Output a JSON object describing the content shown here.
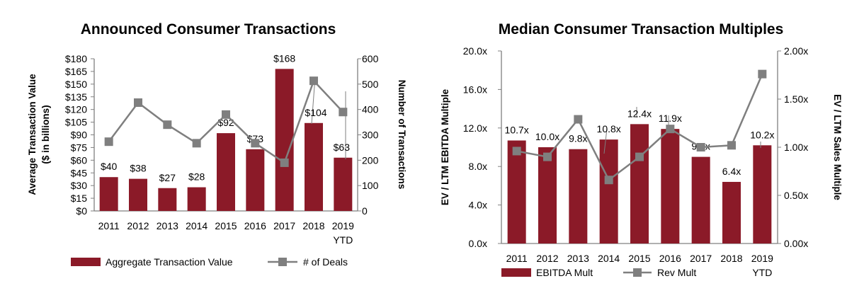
{
  "colors": {
    "bar": "#8b1a28",
    "line": "#7f7f7f",
    "axis": "#808080"
  },
  "chart_data": [
    {
      "type": "bar",
      "title": "Announced Consumer Transactions",
      "categories": [
        "2011",
        "2012",
        "2013",
        "2014",
        "2015",
        "2016",
        "2017",
        "2018",
        "2019"
      ],
      "category_sublabels": [
        "",
        "",
        "",
        "",
        "",
        "",
        "",
        "",
        "YTD"
      ],
      "series": [
        {
          "name": "Aggregate Transaction Value",
          "type": "bar",
          "axis": "left",
          "values": [
            40,
            38,
            27,
            28,
            92,
            73,
            168,
            104,
            63
          ],
          "labels": [
            "$40",
            "$38",
            "$27",
            "$28",
            "$92",
            "$73",
            "$168",
            "$104",
            "$63"
          ]
        },
        {
          "name": "# of Deals",
          "type": "line",
          "axis": "right",
          "values": [
            273,
            427,
            340,
            267,
            380,
            267,
            190,
            513,
            390
          ]
        }
      ],
      "ylabel_lines": [
        "Average Transaction Value",
        "($ in billions)"
      ],
      "y2label": "Number of Transactions",
      "ylim": [
        0,
        180
      ],
      "yticks": [
        "$0",
        "$15",
        "$30",
        "$45",
        "$60",
        "$75",
        "$90",
        "$105",
        "$120",
        "$135",
        "$150",
        "$165",
        "$180"
      ],
      "y2lim": [
        0,
        600
      ],
      "y2ticks": [
        "0",
        "100",
        "200",
        "300",
        "400",
        "500",
        "600"
      ],
      "legend_position": "bottom"
    },
    {
      "type": "bar",
      "title": "Median Consumer Transaction Multiples",
      "categories": [
        "2011",
        "2012",
        "2013",
        "2014",
        "2015",
        "2016",
        "2017",
        "2018",
        "2019"
      ],
      "category_sublabels": [
        "",
        "",
        "",
        "",
        "",
        "",
        "",
        "",
        "YTD"
      ],
      "series": [
        {
          "name": "EBITDA Mult",
          "type": "bar",
          "axis": "left",
          "values": [
            10.7,
            10.0,
            9.8,
            10.8,
            12.4,
            11.9,
            9.0,
            6.4,
            10.2
          ],
          "labels": [
            "10.7x",
            "10.0x",
            "9.8x",
            "10.8x",
            "12.4x",
            "11.9x",
            "9.0x",
            "6.4x",
            "10.2x"
          ]
        },
        {
          "name": "Rev Mult",
          "type": "line",
          "axis": "right",
          "values": [
            0.96,
            0.9,
            1.29,
            0.66,
            0.9,
            1.19,
            1.0,
            1.02,
            1.76
          ]
        }
      ],
      "ylabel": "EV / LTM EBITDA Multiple",
      "y2label": "EV / LTM Sales Multiple",
      "ylim": [
        0,
        20
      ],
      "yticks": [
        "0.0x",
        "4.0x",
        "8.0x",
        "12.0x",
        "16.0x",
        "20.0x"
      ],
      "y2lim": [
        0,
        2
      ],
      "y2ticks": [
        "0.00x",
        "0.50x",
        "1.00x",
        "1.50x",
        "2.00x"
      ],
      "legend_position": "bottom"
    }
  ]
}
